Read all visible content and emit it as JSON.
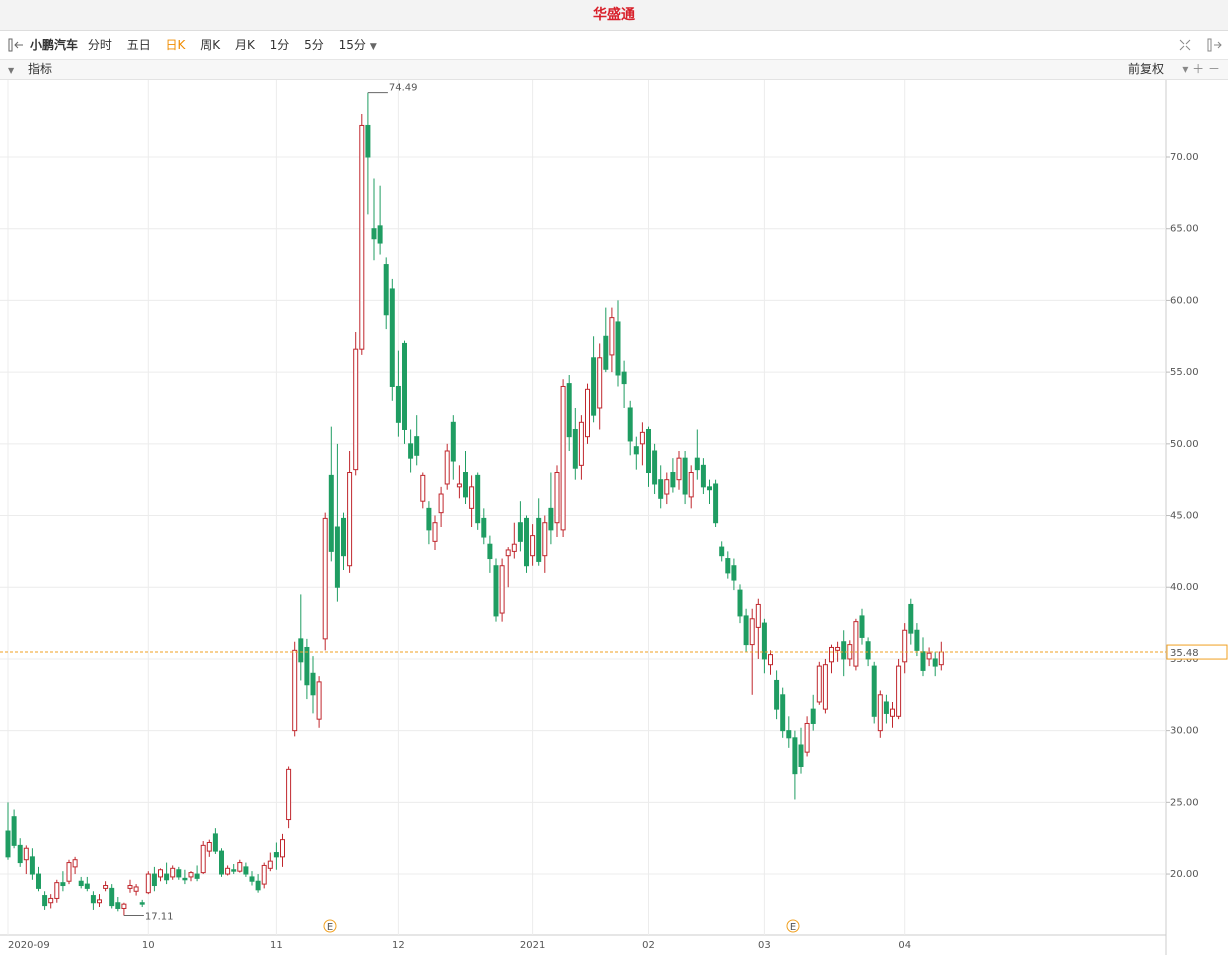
{
  "header": {
    "brand": "华盛通"
  },
  "toolbar": {
    "symbol": "小鹏汽车",
    "periods": [
      "分时",
      "五日",
      "日K",
      "周K",
      "月K",
      "1分",
      "5分",
      "15分"
    ]
  },
  "indicator_bar": {
    "indicator": "指标",
    "adjust": "前复权"
  },
  "chart_data": {
    "type": "candlestick",
    "categories": [
      "2020-09",
      null,
      null,
      null,
      null,
      null,
      null,
      null,
      null,
      null,
      null,
      null,
      null,
      null,
      null,
      null,
      null,
      null,
      null,
      null,
      null,
      null,
      null,
      "10",
      null,
      null,
      null,
      null,
      null,
      null,
      null,
      null,
      null,
      null,
      null,
      null,
      null,
      null,
      null,
      null,
      null,
      null,
      null,
      null,
      "11",
      null,
      null,
      null,
      null,
      null,
      null,
      null,
      null,
      null,
      null,
      null,
      null,
      null,
      null,
      null,
      null,
      null,
      null,
      null,
      "12",
      null,
      null,
      null,
      null,
      null,
      null,
      null,
      null,
      null,
      null,
      null,
      null,
      null,
      null,
      null,
      null,
      null,
      null,
      null,
      null,
      null,
      "2021",
      null,
      null,
      null,
      null,
      null,
      null,
      null,
      null,
      null,
      null,
      null,
      null,
      null,
      null,
      null,
      null,
      null,
      null,
      "02",
      null,
      null,
      null,
      null,
      null,
      null,
      null,
      null,
      null,
      null,
      null,
      null,
      null,
      null,
      null,
      null,
      null,
      null,
      "03",
      null,
      null,
      null,
      null,
      null,
      null,
      null,
      null,
      null,
      null,
      null,
      null,
      null,
      null,
      null,
      null,
      null,
      null,
      null,
      null,
      null,
      null,
      "04",
      null,
      null,
      null,
      null,
      null,
      null
    ],
    "candles": [
      [
        23.0,
        25.0,
        21.0,
        21.2
      ],
      [
        24.0,
        24.5,
        21.8,
        22.0
      ],
      [
        22.0,
        22.5,
        20.5,
        20.8
      ],
      [
        21.0,
        22.0,
        20.0,
        21.8
      ],
      [
        21.2,
        21.8,
        19.6,
        20.0
      ],
      [
        20.0,
        20.5,
        18.8,
        19.0
      ],
      [
        18.5,
        18.8,
        17.5,
        17.8
      ],
      [
        18.0,
        18.6,
        17.6,
        18.3
      ],
      [
        18.3,
        19.6,
        18.0,
        19.4
      ],
      [
        19.4,
        20.2,
        18.8,
        19.2
      ],
      [
        19.5,
        21.0,
        19.3,
        20.8
      ],
      [
        20.5,
        21.2,
        20.0,
        21.0
      ],
      [
        19.5,
        19.8,
        19.0,
        19.2
      ],
      [
        19.3,
        19.8,
        18.8,
        19.0
      ],
      [
        18.5,
        18.8,
        17.5,
        18.0
      ],
      [
        18.0,
        18.6,
        17.7,
        18.2
      ],
      [
        19.0,
        19.5,
        18.8,
        19.2
      ],
      [
        19.0,
        19.3,
        17.6,
        17.8
      ],
      [
        18.0,
        18.4,
        17.4,
        17.6
      ],
      [
        17.6,
        18.0,
        17.11,
        17.9
      ],
      [
        19.0,
        19.6,
        18.7,
        19.2
      ],
      [
        18.8,
        19.3,
        18.5,
        19.1
      ],
      [
        18.0,
        18.2,
        17.7,
        17.9
      ],
      [
        18.7,
        20.2,
        18.6,
        20.0
      ],
      [
        20.0,
        20.5,
        18.8,
        19.2
      ],
      [
        19.8,
        20.4,
        19.5,
        20.3
      ],
      [
        20.0,
        20.8,
        19.3,
        19.6
      ],
      [
        19.8,
        20.6,
        19.6,
        20.4
      ],
      [
        20.3,
        20.5,
        19.6,
        19.8
      ],
      [
        19.7,
        20.3,
        19.3,
        19.6
      ],
      [
        19.8,
        20.2,
        19.5,
        20.1
      ],
      [
        20.0,
        20.6,
        19.5,
        19.7
      ],
      [
        20.1,
        22.3,
        20.0,
        22.0
      ],
      [
        21.6,
        22.4,
        21.2,
        22.2
      ],
      [
        22.8,
        23.2,
        21.4,
        21.6
      ],
      [
        21.6,
        21.8,
        19.8,
        20.0
      ],
      [
        20.0,
        20.6,
        19.9,
        20.4
      ],
      [
        20.3,
        20.7,
        20.0,
        20.2
      ],
      [
        20.2,
        21.0,
        20.1,
        20.8
      ],
      [
        20.5,
        20.8,
        19.8,
        20.0
      ],
      [
        19.8,
        20.2,
        19.2,
        19.5
      ],
      [
        19.5,
        20.0,
        18.7,
        18.9
      ],
      [
        19.3,
        20.8,
        19.0,
        20.6
      ],
      [
        20.4,
        21.5,
        20.2,
        20.9
      ],
      [
        21.5,
        22.2,
        20.3,
        21.2
      ],
      [
        21.2,
        22.8,
        20.5,
        22.4
      ],
      [
        23.8,
        27.5,
        23.2,
        27.3
      ],
      [
        30.0,
        36.2,
        29.6,
        35.6
      ],
      [
        36.4,
        39.5,
        33.5,
        34.8
      ],
      [
        35.8,
        36.4,
        32.2,
        33.2
      ],
      [
        34.0,
        35.2,
        31.2,
        32.5
      ],
      [
        30.8,
        33.8,
        30.2,
        33.4
      ],
      [
        36.4,
        45.2,
        35.6,
        44.8
      ],
      [
        47.8,
        51.2,
        41.8,
        42.5
      ],
      [
        44.2,
        50.0,
        39.0,
        40.0
      ],
      [
        44.8,
        45.2,
        41.2,
        42.2
      ],
      [
        41.5,
        49.5,
        41.0,
        48.0
      ],
      [
        48.2,
        57.8,
        47.8,
        56.6
      ],
      [
        56.6,
        73.0,
        56.2,
        72.2
      ],
      [
        72.2,
        74.49,
        66.0,
        70.0
      ],
      [
        65.0,
        68.5,
        62.8,
        64.3
      ],
      [
        65.2,
        68.0,
        63.2,
        64.0
      ],
      [
        62.5,
        63.0,
        58.0,
        59.0
      ],
      [
        60.8,
        61.5,
        53.0,
        54.0
      ],
      [
        54.0,
        56.5,
        50.5,
        51.5
      ],
      [
        57.0,
        57.2,
        50.0,
        51.0
      ],
      [
        50.0,
        51.0,
        48.0,
        49.0
      ],
      [
        50.5,
        52.0,
        48.5,
        49.2
      ],
      [
        46.0,
        48.0,
        45.5,
        47.8
      ],
      [
        45.5,
        46.0,
        43.0,
        44.0
      ],
      [
        43.2,
        45.0,
        42.6,
        44.5
      ],
      [
        45.2,
        47.0,
        44.2,
        46.5
      ],
      [
        47.2,
        50.0,
        46.8,
        49.5
      ],
      [
        51.5,
        52.0,
        47.5,
        48.8
      ],
      [
        47.0,
        48.5,
        46.2,
        47.2
      ],
      [
        48.0,
        49.5,
        45.8,
        46.3
      ],
      [
        45.5,
        47.8,
        44.2,
        47.0
      ],
      [
        47.8,
        48.0,
        44.0,
        44.5
      ],
      [
        44.8,
        45.5,
        43.0,
        43.5
      ],
      [
        43.0,
        43.6,
        41.0,
        42.0
      ],
      [
        41.5,
        42.0,
        37.6,
        38.0
      ],
      [
        38.2,
        42.0,
        37.6,
        41.5
      ],
      [
        42.2,
        42.8,
        40.0,
        42.6
      ],
      [
        42.5,
        44.5,
        42.0,
        43.0
      ],
      [
        44.5,
        46.0,
        42.5,
        43.2
      ],
      [
        44.8,
        45.0,
        41.0,
        41.5
      ],
      [
        42.2,
        44.4,
        41.5,
        43.6
      ],
      [
        44.8,
        46.2,
        41.5,
        41.8
      ],
      [
        42.2,
        45.0,
        41.0,
        44.5
      ],
      [
        45.5,
        48.0,
        43.0,
        44.0
      ],
      [
        44.5,
        48.5,
        43.5,
        48.0
      ],
      [
        44.0,
        54.5,
        43.5,
        54.0
      ],
      [
        54.2,
        54.8,
        49.5,
        50.5
      ],
      [
        51.0,
        52.5,
        47.5,
        48.3
      ],
      [
        48.5,
        52.0,
        47.5,
        51.5
      ],
      [
        50.5,
        54.2,
        50.0,
        53.8
      ],
      [
        56.0,
        57.5,
        51.5,
        52.0
      ],
      [
        52.5,
        57.0,
        51.0,
        56.0
      ],
      [
        57.5,
        59.5,
        55.0,
        55.2
      ],
      [
        56.2,
        59.5,
        55.0,
        58.8
      ],
      [
        58.5,
        60.0,
        54.0,
        54.8
      ],
      [
        55.0,
        55.8,
        52.5,
        54.2
      ],
      [
        52.5,
        53.0,
        49.2,
        50.2
      ],
      [
        49.8,
        50.5,
        48.2,
        49.3
      ],
      [
        50.0,
        51.5,
        48.5,
        50.8
      ],
      [
        51.0,
        51.2,
        47.0,
        48.0
      ],
      [
        49.5,
        50.0,
        46.5,
        47.2
      ],
      [
        47.5,
        48.5,
        45.5,
        46.2
      ],
      [
        46.5,
        48.0,
        45.8,
        47.5
      ],
      [
        48.0,
        49.0,
        46.6,
        47.0
      ],
      [
        47.5,
        49.5,
        46.8,
        49.0
      ],
      [
        49.0,
        49.5,
        45.8,
        46.5
      ],
      [
        46.3,
        48.5,
        45.5,
        48.0
      ],
      [
        49.0,
        51.0,
        47.5,
        48.2
      ],
      [
        48.5,
        49.0,
        46.5,
        47.0
      ],
      [
        47.0,
        47.5,
        45.8,
        46.8
      ],
      [
        47.2,
        47.5,
        44.2,
        44.5
      ],
      [
        42.8,
        43.2,
        41.8,
        42.2
      ],
      [
        42.0,
        42.5,
        40.6,
        41.0
      ],
      [
        41.5,
        42.0,
        39.8,
        40.5
      ],
      [
        39.8,
        40.2,
        37.5,
        38.0
      ],
      [
        38.0,
        38.5,
        35.5,
        36.0
      ],
      [
        36.0,
        38.5,
        32.5,
        37.8
      ],
      [
        37.2,
        39.2,
        35.0,
        38.8
      ],
      [
        37.5,
        37.8,
        34.0,
        35.0
      ],
      [
        34.6,
        35.6,
        33.9,
        35.3
      ],
      [
        33.5,
        34.2,
        30.8,
        31.5
      ],
      [
        32.5,
        33.0,
        29.5,
        30.0
      ],
      [
        30.0,
        31.0,
        28.8,
        29.5
      ],
      [
        29.5,
        30.0,
        25.2,
        27.0
      ],
      [
        29.0,
        30.2,
        27.0,
        27.5
      ],
      [
        28.5,
        31.0,
        28.2,
        30.5
      ],
      [
        31.5,
        32.5,
        30.0,
        30.5
      ],
      [
        32.0,
        34.8,
        31.8,
        34.5
      ],
      [
        31.5,
        35.0,
        31.2,
        34.6
      ],
      [
        34.8,
        36.0,
        34.0,
        35.8
      ],
      [
        35.6,
        36.2,
        34.8,
        35.8
      ],
      [
        36.2,
        37.0,
        33.8,
        35.0
      ],
      [
        35.0,
        36.3,
        34.5,
        36.0
      ],
      [
        34.5,
        37.8,
        34.2,
        37.6
      ],
      [
        38.0,
        38.5,
        36.0,
        36.5
      ],
      [
        36.2,
        36.5,
        34.5,
        35.0
      ],
      [
        34.5,
        34.8,
        30.5,
        31.0
      ],
      [
        30.0,
        32.8,
        29.5,
        32.5
      ],
      [
        32.0,
        32.5,
        30.5,
        31.2
      ],
      [
        31.0,
        32.0,
        30.2,
        31.5
      ],
      [
        31.0,
        35.0,
        30.8,
        34.5
      ],
      [
        34.8,
        37.5,
        34.0,
        37.0
      ],
      [
        38.8,
        39.2,
        36.0,
        36.8
      ],
      [
        37.0,
        37.5,
        35.2,
        35.6
      ],
      [
        35.5,
        36.5,
        33.8,
        34.2
      ],
      [
        35.0,
        35.8,
        34.5,
        35.4
      ],
      [
        35.0,
        35.5,
        33.8,
        34.5
      ],
      [
        34.6,
        36.2,
        34.2,
        35.48
      ]
    ],
    "up_color": "#c0272d",
    "down_color": "#1f9d62",
    "ylim": [
      15.75,
      75.37
    ],
    "yticks": [
      {
        "value": 20,
        "label": "20.00"
      },
      {
        "value": 25,
        "label": "25.00"
      },
      {
        "value": 30,
        "label": "30.00"
      },
      {
        "value": 35,
        "label": "35.00"
      },
      {
        "value": 40,
        "label": "40.00"
      },
      {
        "value": 45,
        "label": "45.00"
      },
      {
        "value": 50,
        "label": "50.00"
      },
      {
        "value": 55,
        "label": "55.00"
      },
      {
        "value": 60,
        "label": "60.00"
      },
      {
        "value": 65,
        "label": "65.00"
      },
      {
        "value": 70,
        "label": "70.00"
      }
    ],
    "grid": true,
    "high_label": "74.49",
    "low_label": "17.11",
    "last_price": {
      "value": 35.48,
      "label": "35.48"
    },
    "events": [
      "E",
      "E"
    ]
  }
}
